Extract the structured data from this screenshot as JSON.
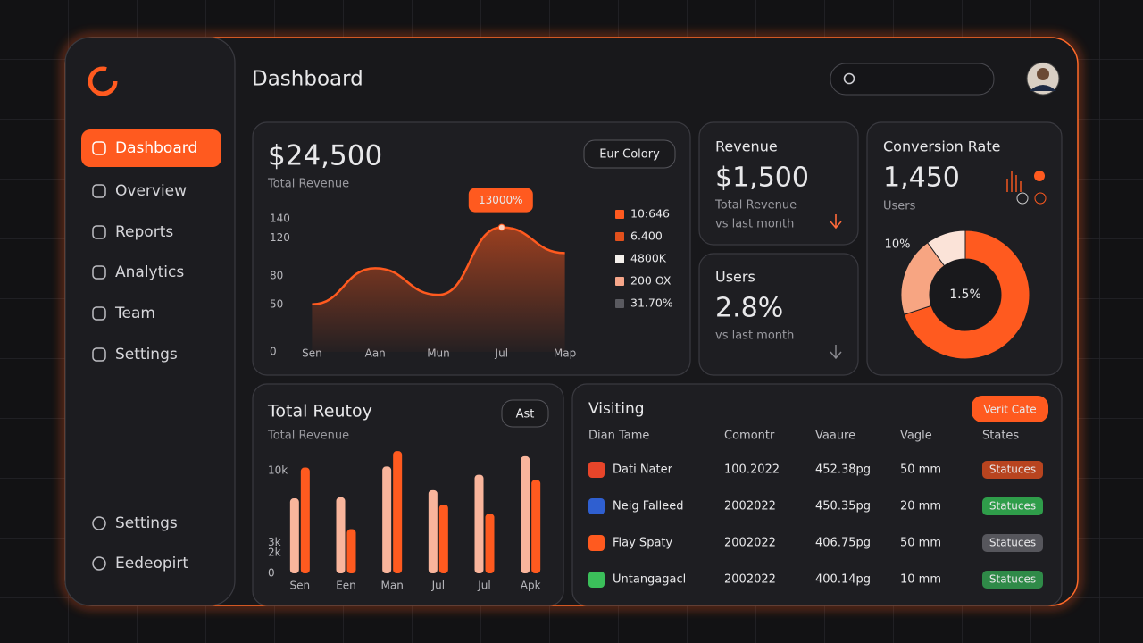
{
  "sidebar": {
    "nav": [
      "Dashboard",
      "Overview",
      "Reports",
      "Analytics",
      "Team",
      "Settings"
    ],
    "footer": [
      "Settings",
      "Eedeopirt"
    ]
  },
  "header": {
    "title": "Dashboard"
  },
  "revenue_card": {
    "value": "$24,500",
    "label": "Total Revenue",
    "button": "Eur Colory",
    "legend": [
      {
        "label": "10:646",
        "color": "#ff5a1f"
      },
      {
        "label": "6.400",
        "color": "#e2501c"
      },
      {
        "label": "4800K",
        "color": "#f4f0ec"
      },
      {
        "label": "200 OX",
        "color": "#f6a68a"
      },
      {
        "label": "31.70%",
        "color": "#5a5a60"
      }
    ]
  },
  "line_chart": {
    "type": "line",
    "categories": [
      "Sen",
      "Aan",
      "Mun",
      "Jul",
      "Map"
    ],
    "series": [
      {
        "color": "#ff5a1f",
        "values": [
          50,
          88,
          60,
          131,
          104
        ]
      }
    ],
    "ylim": [
      0,
      140
    ],
    "yticks": [
      0,
      50,
      80,
      120,
      140
    ],
    "annotation": "13000%"
  },
  "revenue_small": {
    "title": "Revenue",
    "value": "$1,500",
    "label": "Total Revenue",
    "note": "vs last month"
  },
  "users_card": {
    "title": "Users",
    "value": "2.8%",
    "note": "vs last month"
  },
  "conversion_card": {
    "title": "Conversion Rate",
    "value": "1,450",
    "label": "Users"
  },
  "donut_chart": {
    "type": "pie",
    "values": [
      70,
      20,
      10
    ],
    "colors": [
      "#ff5a1f",
      "#f7a582",
      "#fbe3d8"
    ],
    "annotation": "10%",
    "center_label": "1.5%"
  },
  "bar_chart": {
    "type": "bar",
    "title": "Total Reutoy",
    "subtitle": "Total Revenue",
    "button": "Ast",
    "categories": [
      "Sen",
      "Een",
      "Man",
      "Jul",
      "Jul",
      "Apk"
    ],
    "series": [
      {
        "color": "#f9b59c",
        "values": [
          7300,
          7400,
          10400,
          8100,
          9600,
          11400
        ]
      },
      {
        "color": "#ff5a1f",
        "values": [
          10300,
          4300,
          11900,
          6700,
          5800,
          9100
        ]
      }
    ],
    "ylim": [
      0,
      12000
    ],
    "yticks": [
      0,
      {
        "value": 2000,
        "label": "2k"
      },
      {
        "value": 3000,
        "label": "3k"
      },
      {
        "value": 10000,
        "label": "10k"
      }
    ]
  },
  "table": {
    "title": "Visiting",
    "button": "Verit Cate",
    "columns": [
      "Dian Tame",
      "Comontr",
      "Vaaure",
      "Vagle",
      "States"
    ],
    "rows": [
      [
        "Dati Nater",
        "100.2022",
        "452.38pg",
        "50 mm",
        "Statuces"
      ],
      [
        "Neig Falleed",
        "2002022",
        "450.35pg",
        "20 mm",
        "Statuces"
      ],
      [
        "Fiay Spaty",
        "2002022",
        "406.75pg",
        "50 mm",
        "Statuces"
      ],
      [
        "Untangagacl",
        "2002022",
        "400.14pg",
        "10 mm",
        "Statuces"
      ]
    ],
    "icon_colors": [
      "#e8452a",
      "#2f5fd0",
      "#ff5a1f",
      "#3bbf5a"
    ],
    "status_colors": [
      "#b8441f",
      "#2f9d4a",
      "#56565c",
      "#2f8a48"
    ]
  }
}
